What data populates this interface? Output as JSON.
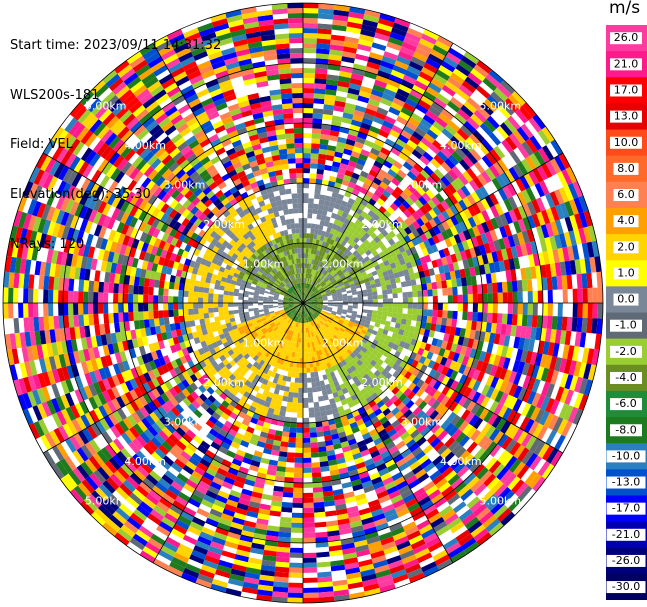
{
  "header": {
    "start_time": "Start time: 2023/09/11 14:31:32",
    "station": "WLS200s-181",
    "field": "Field: VEL",
    "elevation": "Elevation(deg): 35.30",
    "nrays": "NRays: 120"
  },
  "colorbar": {
    "unit": "m/s",
    "ticks": [
      "26.0",
      "21.0",
      "17.0",
      "13.0",
      "10.0",
      "8.0",
      "6.0",
      "4.0",
      "2.0",
      "1.0",
      "0.0",
      "-1.0",
      "-2.0",
      "-4.0",
      "-6.0",
      "-8.0",
      "-10.0",
      "-13.0",
      "-17.0",
      "-21.0",
      "-26.0",
      "-30.0"
    ],
    "colors": [
      "#ff3aa0",
      "#ff1a8c",
      "#ff0000",
      "#e80000",
      "#ff4a1a",
      "#ff6a2a",
      "#ff8050",
      "#ffa000",
      "#ffd400",
      "#ffff00",
      "#7a8799",
      "#606a76",
      "#9acd32",
      "#6b8e23",
      "#1f8c3a",
      "#1e7a1e",
      "#2a7fc0",
      "#0050d0",
      "#0000ff",
      "#0000b0",
      "#00007a",
      "#000060"
    ]
  },
  "chart_data": {
    "type": "heatmap",
    "title": "",
    "field": "VEL",
    "units": "m/s",
    "nrays": 120,
    "elevation_deg": 35.3,
    "range_ring_labels_km": [
      "1.00km",
      "2.00km",
      "3.00km",
      "4.00km"
    ],
    "ring_label_positions": [
      {
        "label": "1.00km",
        "quadrant": "top-left"
      },
      {
        "label": "2.00km",
        "quadrant": "top-right"
      },
      {
        "label": "1.00km",
        "quadrant": "bottom-left"
      },
      {
        "label": "2.00km",
        "quadrant": "bottom-right"
      },
      {
        "label": "2.00km",
        "quadrant": "top-left"
      },
      {
        "label": "2.00km",
        "quadrant": "top-right"
      },
      {
        "label": "2.00km",
        "quadrant": "bottom-left"
      },
      {
        "label": "2.00km",
        "quadrant": "bottom-right"
      },
      {
        "label": "3.00km",
        "quadrant": "top-left"
      },
      {
        "label": "3.00km",
        "quadrant": "top-right"
      },
      {
        "label": "3.00km",
        "quadrant": "bottom-left"
      },
      {
        "label": "3.00km",
        "quadrant": "bottom-right"
      },
      {
        "label": "4.00km",
        "quadrant": "top-left"
      },
      {
        "label": "4.00km",
        "quadrant": "top-right"
      },
      {
        "label": "4.00km",
        "quadrant": "bottom-left"
      },
      {
        "label": "4.00km",
        "quadrant": "bottom-right"
      },
      {
        "label": "5.00km",
        "quadrant": "top-left"
      },
      {
        "label": "5.00km",
        "quadrant": "top-right"
      },
      {
        "label": "5.00km",
        "quadrant": "bottom-left"
      },
      {
        "label": "5.00km",
        "quadrant": "bottom-right"
      }
    ],
    "colorbar_range": [
      -30.0,
      26.0
    ]
  }
}
